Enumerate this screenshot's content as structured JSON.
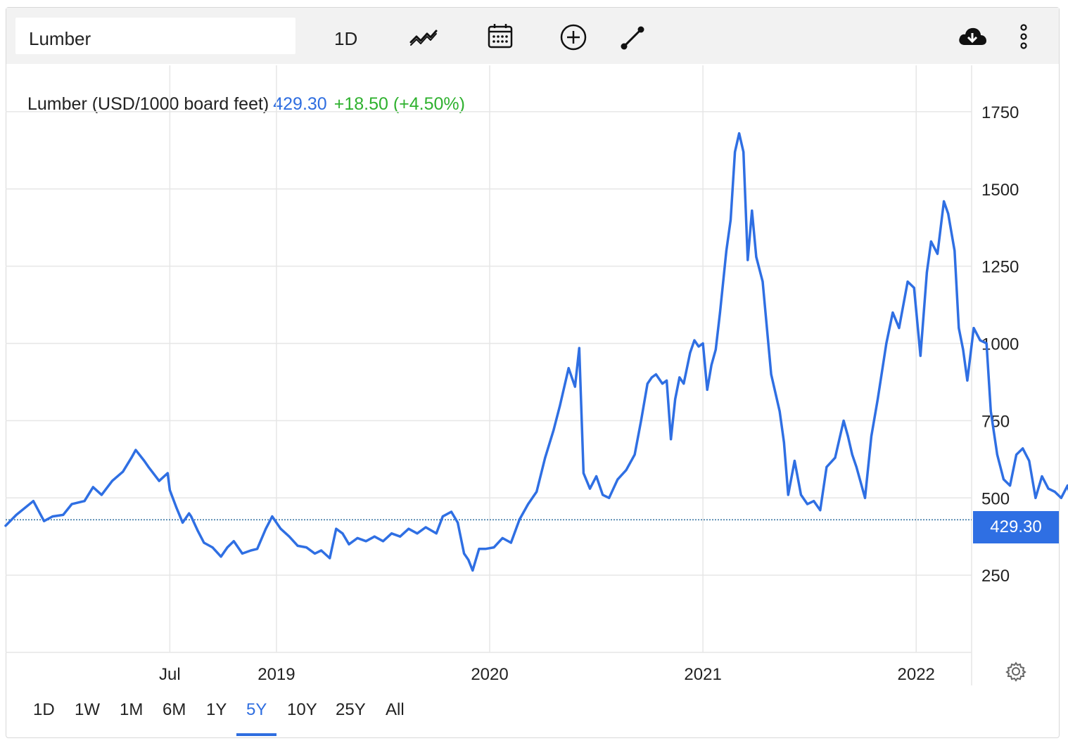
{
  "toolbar": {
    "search_value": "Lumber",
    "interval_label": "1D",
    "icons": [
      "chart-type-icon",
      "calendar-icon",
      "add-indicator-icon",
      "draw-line-icon",
      "download-icon",
      "more-options-icon"
    ]
  },
  "legend": {
    "name": "Lumber (USD/1000 board feet)",
    "value": "429.30",
    "change": "+18.50 (+4.50%)"
  },
  "price_tag": "429.30",
  "ranges": {
    "items": [
      "1D",
      "1W",
      "1M",
      "6M",
      "1Y",
      "5Y",
      "10Y",
      "25Y",
      "All"
    ],
    "active": "5Y"
  },
  "colors": {
    "line": "#2f6fe3",
    "positive": "#2fb12f",
    "grid": "#e6e6e6",
    "toolbar_bg": "#f2f2f2"
  },
  "chart_data": {
    "type": "line",
    "title": "",
    "xlabel": "",
    "ylabel": "",
    "ylim": [
      0,
      1900
    ],
    "yticks": [
      250,
      500,
      750,
      1000,
      1250,
      1500,
      1750
    ],
    "xticks": [
      {
        "label": "Jul",
        "x": 2018.5
      },
      {
        "label": "2019",
        "x": 2019.0
      },
      {
        "label": "2020",
        "x": 2020.0
      },
      {
        "label": "2021",
        "x": 2021.0
      },
      {
        "label": "2022",
        "x": 2022.0
      }
    ],
    "xlim": [
      2017.73,
      2022.26
    ],
    "grid": true,
    "last_price_line": 429.3,
    "series": [
      {
        "values": [
          [
            2017.73,
            410
          ],
          [
            2017.78,
            445
          ],
          [
            2017.86,
            490
          ],
          [
            2017.91,
            425
          ],
          [
            2017.95,
            440
          ],
          [
            2018.0,
            445
          ],
          [
            2018.04,
            480
          ],
          [
            2018.1,
            490
          ],
          [
            2018.14,
            535
          ],
          [
            2018.18,
            510
          ],
          [
            2018.23,
            555
          ],
          [
            2018.28,
            585
          ],
          [
            2018.32,
            630
          ],
          [
            2018.34,
            655
          ],
          [
            2018.38,
            620
          ],
          [
            2018.4,
            600
          ],
          [
            2018.45,
            555
          ],
          [
            2018.49,
            580
          ],
          [
            2018.5,
            525
          ],
          [
            2018.53,
            470
          ],
          [
            2018.56,
            420
          ],
          [
            2018.59,
            450
          ],
          [
            2018.6,
            440
          ],
          [
            2018.63,
            395
          ],
          [
            2018.66,
            355
          ],
          [
            2018.7,
            340
          ],
          [
            2018.74,
            310
          ],
          [
            2018.77,
            340
          ],
          [
            2018.8,
            360
          ],
          [
            2018.84,
            320
          ],
          [
            2018.88,
            330
          ],
          [
            2018.91,
            335
          ],
          [
            2018.95,
            400
          ],
          [
            2018.98,
            440
          ],
          [
            2019.02,
            400
          ],
          [
            2019.06,
            375
          ],
          [
            2019.1,
            345
          ],
          [
            2019.14,
            340
          ],
          [
            2019.18,
            320
          ],
          [
            2019.21,
            330
          ],
          [
            2019.25,
            305
          ],
          [
            2019.28,
            400
          ],
          [
            2019.31,
            385
          ],
          [
            2019.34,
            350
          ],
          [
            2019.38,
            370
          ],
          [
            2019.42,
            360
          ],
          [
            2019.46,
            375
          ],
          [
            2019.5,
            360
          ],
          [
            2019.54,
            385
          ],
          [
            2019.58,
            375
          ],
          [
            2019.62,
            400
          ],
          [
            2019.66,
            385
          ],
          [
            2019.7,
            405
          ],
          [
            2019.75,
            385
          ],
          [
            2019.78,
            440
          ],
          [
            2019.82,
            455
          ],
          [
            2019.85,
            420
          ],
          [
            2019.88,
            320
          ],
          [
            2019.9,
            300
          ],
          [
            2019.92,
            265
          ],
          [
            2019.95,
            335
          ],
          [
            2019.98,
            335
          ],
          [
            2020.02,
            340
          ],
          [
            2020.06,
            370
          ],
          [
            2020.1,
            355
          ],
          [
            2020.14,
            430
          ],
          [
            2020.18,
            480
          ],
          [
            2020.22,
            520
          ],
          [
            2020.26,
            630
          ],
          [
            2020.3,
            720
          ],
          [
            2020.33,
            800
          ],
          [
            2020.37,
            920
          ],
          [
            2020.4,
            860
          ],
          [
            2020.42,
            985
          ],
          [
            2020.44,
            580
          ],
          [
            2020.47,
            530
          ],
          [
            2020.5,
            570
          ],
          [
            2020.53,
            510
          ],
          [
            2020.56,
            500
          ],
          [
            2020.6,
            560
          ],
          [
            2020.64,
            590
          ],
          [
            2020.68,
            640
          ],
          [
            2020.71,
            750
          ],
          [
            2020.74,
            870
          ],
          [
            2020.76,
            890
          ],
          [
            2020.78,
            900
          ],
          [
            2020.81,
            870
          ],
          [
            2020.83,
            880
          ],
          [
            2020.85,
            690
          ],
          [
            2020.87,
            820
          ],
          [
            2020.89,
            890
          ],
          [
            2020.91,
            870
          ],
          [
            2020.94,
            970
          ],
          [
            2020.96,
            1010
          ],
          [
            2020.98,
            990
          ],
          [
            2021.0,
            1000
          ],
          [
            2021.02,
            850
          ],
          [
            2021.04,
            930
          ],
          [
            2021.06,
            980
          ],
          [
            2021.08,
            1100
          ],
          [
            2021.11,
            1300
          ],
          [
            2021.13,
            1400
          ],
          [
            2021.15,
            1620
          ],
          [
            2021.17,
            1680
          ],
          [
            2021.19,
            1620
          ],
          [
            2021.21,
            1270
          ],
          [
            2021.23,
            1430
          ],
          [
            2021.25,
            1280
          ],
          [
            2021.28,
            1200
          ],
          [
            2021.32,
            900
          ],
          [
            2021.36,
            780
          ],
          [
            2021.38,
            680
          ],
          [
            2021.4,
            510
          ],
          [
            2021.43,
            620
          ],
          [
            2021.46,
            510
          ],
          [
            2021.49,
            480
          ],
          [
            2021.52,
            490
          ],
          [
            2021.55,
            460
          ],
          [
            2021.58,
            600
          ],
          [
            2021.62,
            630
          ],
          [
            2021.66,
            750
          ],
          [
            2021.68,
            700
          ],
          [
            2021.7,
            640
          ],
          [
            2021.72,
            600
          ],
          [
            2021.76,
            500
          ],
          [
            2021.79,
            700
          ],
          [
            2021.82,
            820
          ],
          [
            2021.86,
            1000
          ],
          [
            2021.89,
            1100
          ],
          [
            2021.92,
            1050
          ],
          [
            2021.96,
            1200
          ],
          [
            2021.99,
            1180
          ],
          [
            2022.02,
            960
          ],
          [
            2022.05,
            1230
          ],
          [
            2022.07,
            1330
          ],
          [
            2022.1,
            1290
          ],
          [
            2022.13,
            1460
          ],
          [
            2022.15,
            1420
          ],
          [
            2022.18,
            1300
          ],
          [
            2022.2,
            1050
          ],
          [
            2022.22,
            980
          ],
          [
            2022.24,
            880
          ],
          [
            2022.27,
            1050
          ],
          [
            2022.3,
            1010
          ],
          [
            2022.33,
            1000
          ],
          [
            2022.35,
            780
          ],
          [
            2022.38,
            640
          ],
          [
            2022.41,
            560
          ],
          [
            2022.44,
            540
          ],
          [
            2022.47,
            640
          ],
          [
            2022.5,
            660
          ],
          [
            2022.53,
            620
          ],
          [
            2022.56,
            500
          ],
          [
            2022.59,
            570
          ],
          [
            2022.62,
            530
          ],
          [
            2022.65,
            520
          ],
          [
            2022.68,
            500
          ],
          [
            2022.71,
            540
          ],
          [
            2022.73,
            490
          ],
          [
            2022.75,
            429.3
          ]
        ]
      }
    ]
  }
}
